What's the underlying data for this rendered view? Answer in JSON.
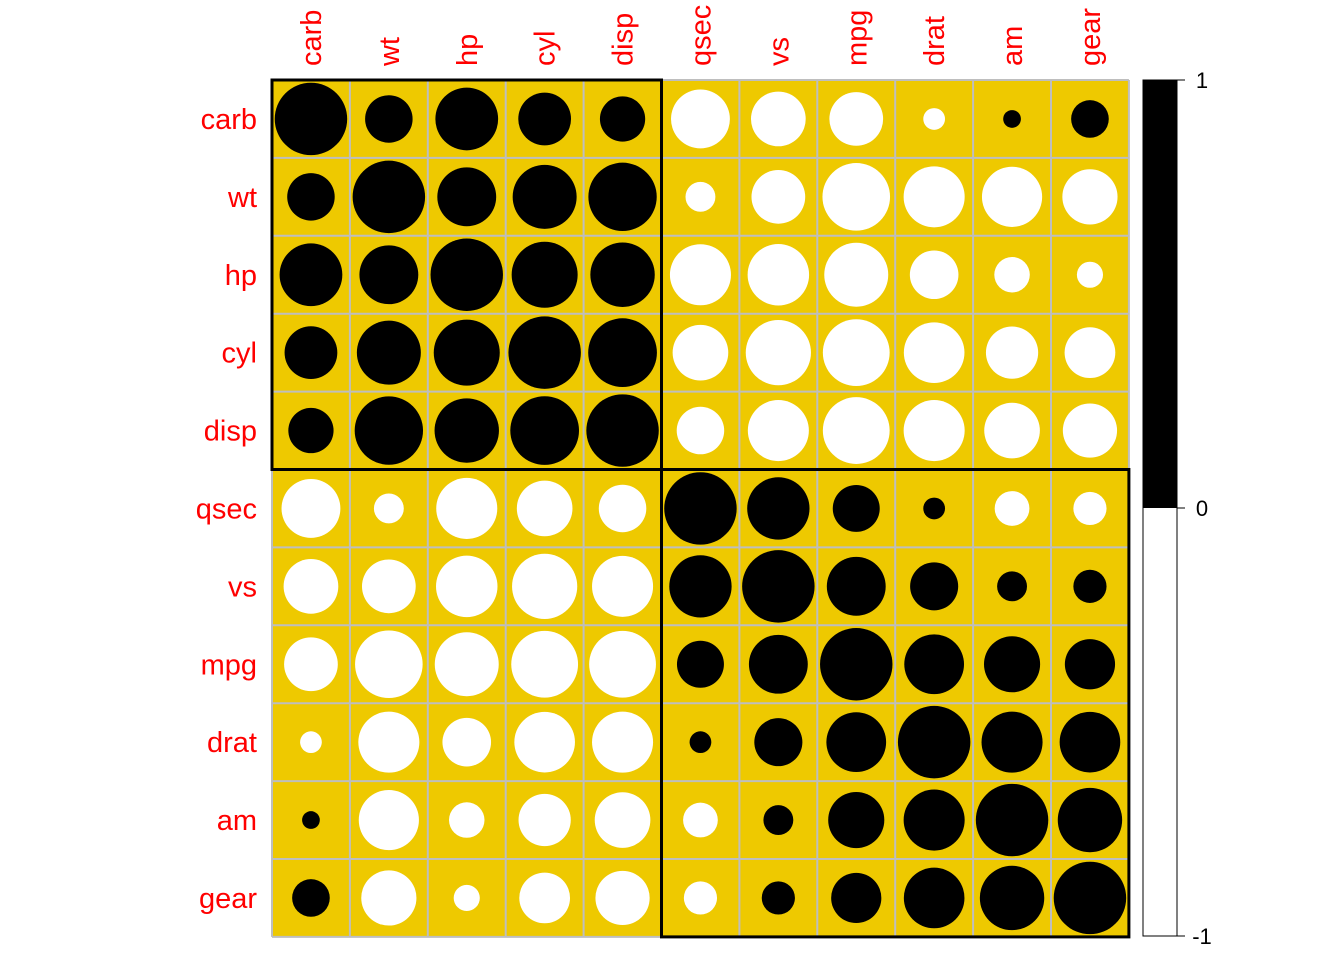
{
  "chart_data": {
    "type": "heatmap",
    "subtype": "correlation-circles",
    "variables": [
      "carb",
      "wt",
      "hp",
      "cyl",
      "disp",
      "qsec",
      "vs",
      "mpg",
      "drat",
      "am",
      "gear"
    ],
    "matrix": [
      [
        1.0,
        0.43,
        0.75,
        0.53,
        0.39,
        -0.66,
        -0.57,
        -0.55,
        -0.09,
        0.06,
        0.27
      ],
      [
        0.43,
        1.0,
        0.66,
        0.78,
        0.89,
        -0.17,
        -0.55,
        -0.87,
        -0.71,
        -0.69,
        -0.58
      ],
      [
        0.75,
        0.66,
        1.0,
        0.83,
        0.79,
        -0.71,
        -0.72,
        -0.78,
        -0.45,
        -0.24,
        -0.13
      ],
      [
        0.53,
        0.78,
        0.83,
        1.0,
        0.9,
        -0.59,
        -0.81,
        -0.85,
        -0.7,
        -0.52,
        -0.49
      ],
      [
        0.39,
        0.89,
        0.79,
        0.9,
        1.0,
        -0.43,
        -0.71,
        -0.85,
        -0.71,
        -0.59,
        -0.56
      ],
      [
        -0.66,
        -0.17,
        -0.71,
        -0.59,
        -0.43,
        1.0,
        0.74,
        0.42,
        0.09,
        -0.23,
        -0.21
      ],
      [
        -0.57,
        -0.55,
        -0.72,
        -0.81,
        -0.71,
        0.74,
        1.0,
        0.66,
        0.44,
        0.17,
        0.21
      ],
      [
        -0.55,
        -0.87,
        -0.78,
        -0.85,
        -0.85,
        0.42,
        0.66,
        1.0,
        0.68,
        0.6,
        0.48
      ],
      [
        -0.09,
        -0.71,
        -0.45,
        -0.7,
        -0.71,
        0.09,
        0.44,
        0.68,
        1.0,
        0.71,
        0.7
      ],
      [
        0.06,
        -0.69,
        -0.24,
        -0.52,
        -0.59,
        -0.23,
        0.17,
        0.6,
        0.71,
        1.0,
        0.79
      ],
      [
        0.27,
        -0.58,
        -0.13,
        -0.49,
        -0.56,
        -0.21,
        0.21,
        0.48,
        0.7,
        0.79,
        1.0
      ]
    ],
    "clusters": [
      [
        "carb",
        "wt",
        "hp",
        "cyl",
        "disp"
      ],
      [
        "qsec",
        "vs",
        "mpg",
        "drat",
        "am",
        "gear"
      ]
    ],
    "colors": {
      "background": "#eec900",
      "grid": "#bebebe",
      "positive": "#000000",
      "negative": "#ffffff",
      "label": "#ff0000",
      "cluster_border": "#000000"
    },
    "colorbar": {
      "range": [
        -1,
        1
      ],
      "ticks": [
        "1",
        "0",
        "-1"
      ]
    }
  }
}
